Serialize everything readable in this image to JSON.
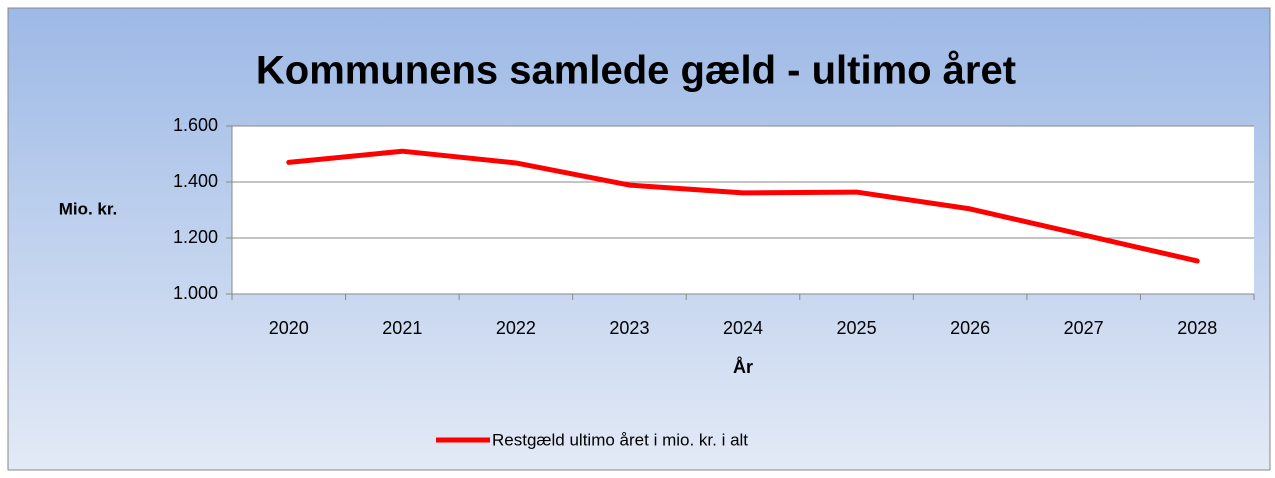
{
  "chart_data": {
    "type": "line",
    "title": "Kommunens samlede gæld - ultimo året",
    "y_label": "Mio. kr.",
    "x_label": "År",
    "categories": [
      "2020",
      "2021",
      "2022",
      "2023",
      "2024",
      "2025",
      "2026",
      "2027",
      "2028"
    ],
    "series": [
      {
        "name": "Restgæld ultimo året i mio. kr. i alt",
        "color": "#ff0000",
        "values": [
          1470,
          1510,
          1468,
          1389,
          1361,
          1364,
          1304,
          1211,
          1118
        ]
      }
    ],
    "ylim": [
      1000,
      1600
    ],
    "yticks": [
      {
        "value": 1000,
        "label": "1.000"
      },
      {
        "value": 1200,
        "label": "1.200"
      },
      {
        "value": 1400,
        "label": "1.400"
      },
      {
        "value": 1600,
        "label": "1.600"
      }
    ],
    "grid": true,
    "legend": "bottom"
  }
}
